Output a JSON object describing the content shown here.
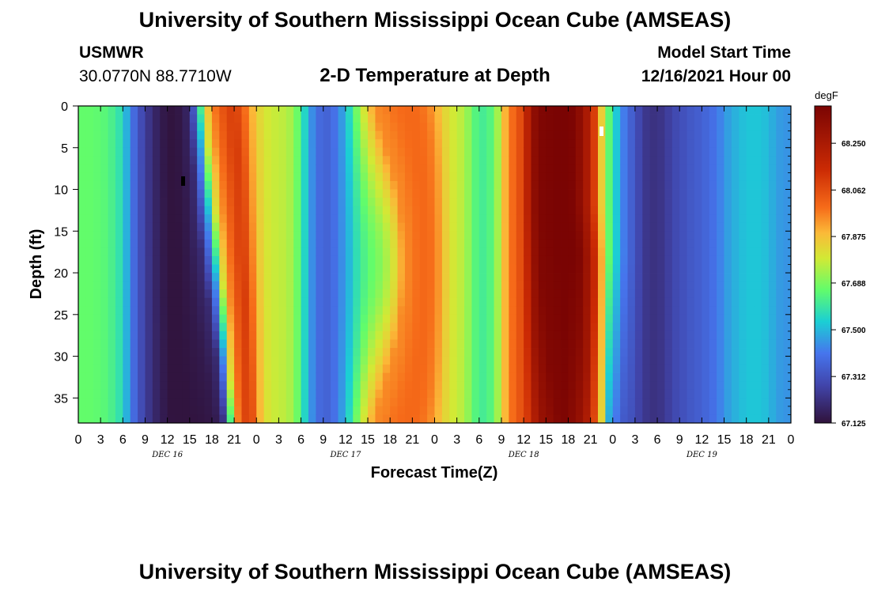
{
  "header": {
    "title": "University of Southern Mississippi Ocean Cube (AMSEAS)",
    "station": "USMWR",
    "coords": "30.0770N  88.7710W",
    "subtitle": "2-D Temperature at Depth",
    "start_label": "Model Start Time",
    "start_value": "12/16/2021 Hour 00"
  },
  "footer": {
    "title": "University of Southern Mississippi Ocean Cube (AMSEAS)"
  },
  "chart_data": {
    "type": "heatmap",
    "xlabel": "Forecast Time(Z)",
    "ylabel": "Depth (ft)",
    "x_tick_labels": [
      "0",
      "3",
      "6",
      "9",
      "12",
      "15",
      "18",
      "21",
      "0",
      "3",
      "6",
      "9",
      "12",
      "15",
      "18",
      "21",
      "0",
      "3",
      "6",
      "9",
      "12",
      "15",
      "18",
      "21",
      "0",
      "3",
      "6",
      "9",
      "12",
      "15",
      "18",
      "21",
      "0"
    ],
    "day_labels": [
      "DEC 16",
      "DEC 17",
      "DEC 18",
      "DEC 19"
    ],
    "xlim_hours": [
      0,
      96
    ],
    "y_ticks": [
      0,
      5,
      10,
      15,
      20,
      25,
      30,
      35
    ],
    "ylim": [
      0,
      38
    ],
    "y_reversed": true,
    "colorbar": {
      "unit": "degF",
      "range": [
        67.125,
        68.4
      ],
      "tick_values": [
        67.125,
        67.312,
        67.5,
        67.688,
        67.875,
        68.062,
        68.25
      ],
      "tick_labels": [
        "67.125",
        "67.312",
        "67.500",
        "67.688",
        "67.875",
        "68.062",
        "68.250"
      ]
    },
    "time_profile_hours": [
      0,
      2,
      4,
      6,
      7,
      8,
      9,
      10,
      11,
      12,
      13,
      14,
      15,
      16,
      17,
      18,
      19,
      20,
      21,
      22,
      23,
      24,
      25,
      26,
      27,
      28,
      29,
      30,
      31,
      32,
      33,
      34,
      35,
      36,
      37,
      38,
      39,
      40,
      41,
      42,
      43,
      44,
      45,
      46,
      47,
      48,
      49,
      50,
      52,
      54,
      56,
      57,
      58,
      59,
      60,
      61,
      62,
      63,
      64,
      65,
      66,
      67,
      68,
      69,
      70,
      71,
      72,
      73,
      74,
      75,
      76,
      77,
      78,
      79,
      80,
      81,
      82,
      83,
      84,
      85,
      86,
      87,
      88,
      89,
      90,
      91,
      92,
      93,
      94,
      95,
      96
    ],
    "surface_temp_degF": [
      67.66,
      67.66,
      67.64,
      67.56,
      67.42,
      67.33,
      67.26,
      67.2,
      67.16,
      67.13,
      67.13,
      67.15,
      67.2,
      67.45,
      67.8,
      67.95,
      68.02,
      68.08,
      68.1,
      68.04,
      67.93,
      67.85,
      67.8,
      67.78,
      67.77,
      67.76,
      67.72,
      67.62,
      67.48,
      67.4,
      67.35,
      67.37,
      67.42,
      67.5,
      67.62,
      67.75,
      67.85,
      67.95,
      67.96,
      67.98,
      67.99,
      68.0,
      68.0,
      67.99,
      67.97,
      67.92,
      67.85,
      67.8,
      67.75,
      67.6,
      67.65,
      67.82,
      67.97,
      68.02,
      68.1,
      68.3,
      68.38,
      68.39,
      68.4,
      68.4,
      68.4,
      68.38,
      68.3,
      68.2,
      68.0,
      67.7,
      67.6,
      67.45,
      67.38,
      67.32,
      67.25,
      67.22,
      67.22,
      67.24,
      67.28,
      67.3,
      67.32,
      67.34,
      67.35,
      67.38,
      67.4,
      67.45,
      67.48,
      67.5,
      67.52,
      67.52,
      67.52,
      67.5,
      67.47,
      67.45,
      67.45
    ]
  }
}
